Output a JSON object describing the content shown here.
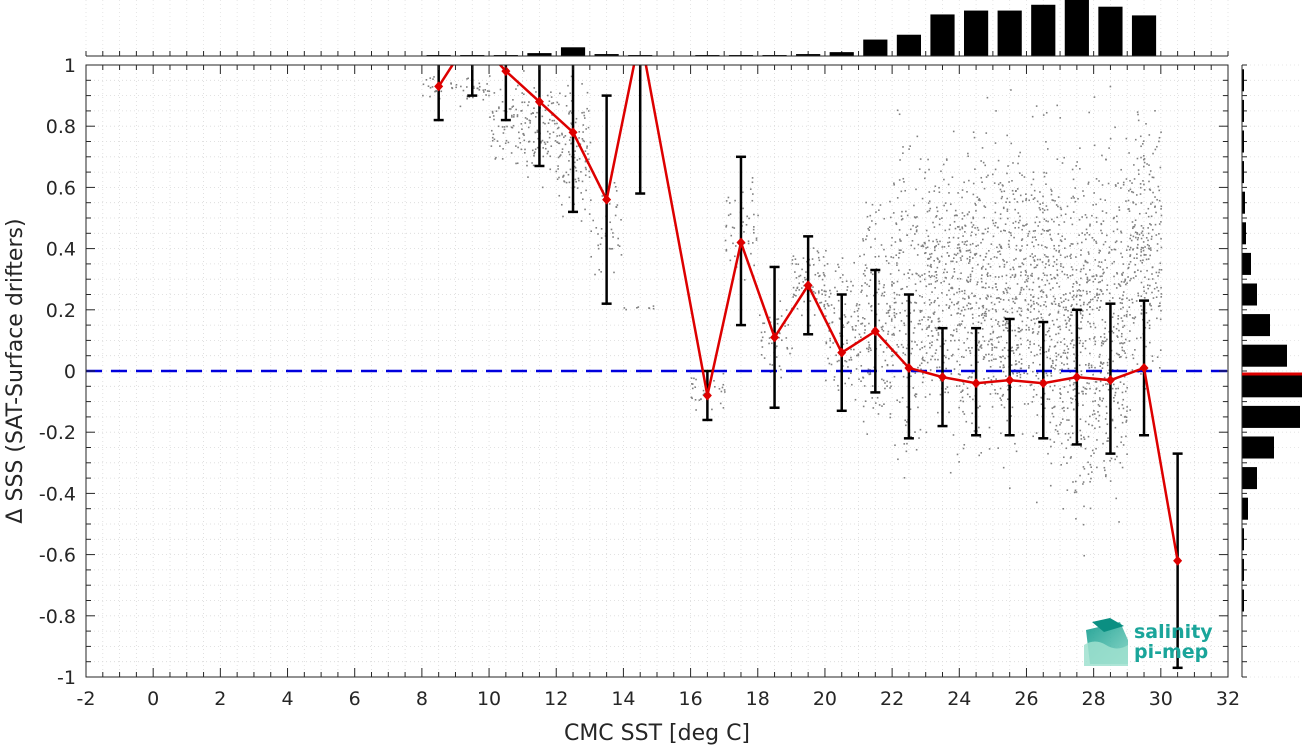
{
  "chart_data": {
    "type": "scatter",
    "title": "",
    "xlabel": "CMC SST [deg C]",
    "ylabel": "Δ SSS (SAT-Surface drifters)",
    "xlim": [
      -2,
      32
    ],
    "ylim": [
      -1,
      1
    ],
    "xticks": [
      -2,
      0,
      2,
      4,
      6,
      8,
      10,
      12,
      14,
      16,
      18,
      20,
      22,
      24,
      26,
      28,
      30,
      32
    ],
    "yticks": [
      -1,
      -0.8,
      -0.6,
      -0.4,
      -0.2,
      0,
      0.2,
      0.4,
      0.6,
      0.8,
      1
    ],
    "grid": true,
    "reference_line": {
      "y": 0,
      "color": "#0000dd",
      "style": "dashed"
    },
    "binned_mean": {
      "color": "#dd0000",
      "x": [
        8.5,
        9.5,
        10.5,
        11.5,
        12.5,
        13.5,
        14.5,
        16.5,
        17.5,
        18.5,
        19.5,
        20.5,
        21.5,
        22.5,
        23.5,
        24.5,
        25.5,
        26.5,
        27.5,
        28.5,
        29.5,
        30.5
      ],
      "mean": [
        0.93,
        1.1,
        0.98,
        0.88,
        0.78,
        0.56,
        1.1,
        -0.08,
        0.42,
        0.11,
        0.28,
        0.06,
        0.13,
        0.01,
        -0.02,
        -0.04,
        -0.03,
        -0.04,
        -0.02,
        -0.03,
        0.01,
        -0.62
      ],
      "lower": [
        0.82,
        0.9,
        0.82,
        0.67,
        0.52,
        0.22,
        0.58,
        -0.16,
        0.15,
        -0.12,
        0.12,
        -0.13,
        -0.07,
        -0.22,
        -0.18,
        -0.21,
        -0.21,
        -0.22,
        -0.24,
        -0.27,
        -0.21,
        -0.97
      ],
      "upper": [
        1.05,
        1.3,
        1.12,
        1.05,
        1.02,
        0.9,
        1.6,
        0.0,
        0.7,
        0.34,
        0.44,
        0.25,
        0.33,
        0.25,
        0.14,
        0.14,
        0.17,
        0.16,
        0.2,
        0.22,
        0.23,
        -0.27
      ]
    },
    "scatter_cloud": {
      "color": "#808080",
      "x_bins": [
        8.5,
        9.5,
        10.5,
        11.5,
        12.5,
        13.5,
        14.5,
        16.5,
        17.5,
        18.5,
        19.5,
        20.5,
        21.5,
        22.5,
        23.5,
        24.5,
        25.5,
        26.5,
        27.5,
        28.5,
        29.5
      ],
      "y_min": [
        0.85,
        0.85,
        0.62,
        0.58,
        0.45,
        0.2,
        0.2,
        -0.15,
        0.2,
        -0.08,
        0.12,
        -0.22,
        -0.35,
        -0.48,
        -0.4,
        -0.42,
        -0.44,
        -0.5,
        -0.72,
        -0.68,
        -0.2
      ],
      "y_max": [
        1.0,
        1.0,
        1.0,
        1.0,
        1.0,
        0.7,
        0.22,
        0.02,
        0.72,
        0.32,
        0.45,
        0.45,
        0.72,
        0.98,
        0.92,
        0.95,
        0.96,
        1.0,
        1.0,
        1.0,
        1.0
      ],
      "density": [
        20,
        30,
        70,
        90,
        130,
        40,
        8,
        30,
        55,
        50,
        80,
        110,
        170,
        220,
        260,
        290,
        300,
        320,
        330,
        310,
        260
      ]
    },
    "top_histogram": {
      "bins": [
        8.5,
        9.5,
        10.5,
        11.5,
        12.5,
        13.5,
        14.5,
        16.5,
        17.5,
        18.5,
        19.5,
        20.5,
        21.5,
        22.5,
        23.5,
        24.5,
        25.5,
        26.5,
        27.5,
        28.5,
        29.5
      ],
      "counts": [
        1,
        1,
        1,
        3,
        9,
        2,
        1,
        1,
        1,
        1,
        2,
        4,
        17,
        22,
        43,
        47,
        47,
        53,
        60,
        51,
        42
      ]
    },
    "right_histogram": {
      "bin_centers": [
        0.95,
        0.85,
        0.75,
        0.65,
        0.55,
        0.45,
        0.35,
        0.25,
        0.15,
        0.05,
        -0.05,
        -0.15,
        -0.25,
        -0.35,
        -0.45,
        -0.55,
        -0.65,
        -0.75,
        -0.85,
        -0.95
      ],
      "counts": [
        1,
        2,
        2,
        2,
        3,
        4,
        9,
        15,
        28,
        45,
        60,
        58,
        32,
        15,
        6,
        2,
        1,
        1,
        0,
        0
      ],
      "mean_marker": -0.01
    },
    "logo": {
      "line1": "salinity",
      "line2": "pi-mep",
      "color": "#1aa59a"
    }
  }
}
